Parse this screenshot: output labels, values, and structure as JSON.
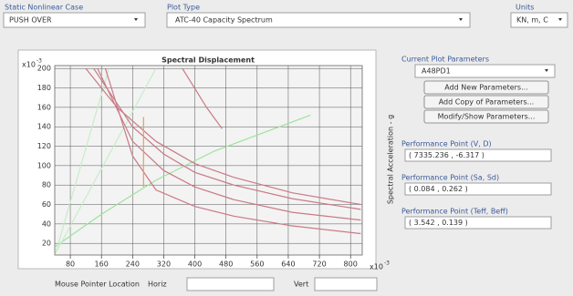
{
  "controls": {
    "case_label": "Static Nonlinear Case",
    "case_value": "PUSH OVER",
    "plot_type_label": "Plot Type",
    "plot_type_value": "ATC-40 Capacity Spectrum",
    "units_label": "Units",
    "units_value": "KN, m, C"
  },
  "plot": {
    "title": "Spectral Displacement",
    "y_label": "Spectral Acceleration - g",
    "y_exponent": "x10",
    "y_exponent_power": "-3",
    "x_exponent": "x10",
    "x_exponent_power": "-3",
    "xlim": [
      40,
      830
    ],
    "ylim": [
      8,
      203
    ],
    "xticks": [
      80,
      160,
      240,
      320,
      400,
      480,
      560,
      640,
      720,
      800
    ],
    "yticks": [
      20,
      40,
      60,
      80,
      100,
      120,
      140,
      160,
      180,
      200
    ],
    "grid": true,
    "series": [
      {
        "color": "#9be39b",
        "x": [
          42,
          160,
          300,
          450,
          697
        ],
        "values": [
          17,
          50,
          85,
          115,
          152
        ]
      },
      {
        "color": "#c8ecc8",
        "x": [
          42,
          179
        ],
        "values": [
          10,
          200
        ]
      },
      {
        "color": "#c8ecc8",
        "x": [
          42,
          300
        ],
        "values": [
          10,
          200
        ]
      },
      {
        "color": "#c97a86",
        "x": [
          120,
          200,
          300,
          400,
          500,
          650,
          826
        ],
        "values": [
          200,
          160,
          125,
          102,
          88,
          72,
          60
        ]
      },
      {
        "color": "#c97a86",
        "x": [
          140,
          240,
          320,
          400,
          500,
          650,
          826
        ],
        "values": [
          200,
          140,
          112,
          93,
          80,
          66,
          55
        ]
      },
      {
        "color": "#c97a86",
        "x": [
          150,
          240,
          320,
          400,
          500,
          650,
          826
        ],
        "values": [
          200,
          125,
          95,
          78,
          65,
          52,
          44
        ]
      },
      {
        "color": "#c97a86",
        "x": [
          170,
          240,
          300,
          400,
          500,
          650,
          826
        ],
        "values": [
          200,
          110,
          75,
          58,
          48,
          38,
          30
        ]
      },
      {
        "color": "#c97a86",
        "x": [
          368,
          430,
          470
        ],
        "values": [
          200,
          160,
          138
        ]
      },
      {
        "color": "#e0a060",
        "x": [
          268,
          268
        ],
        "values": [
          150,
          78
        ]
      }
    ]
  },
  "parameters": {
    "title": "Current Plot Parameters",
    "selected": "A48PD1",
    "buttons": [
      "Add New Parameters...",
      "Add Copy of Parameters...",
      "Modify/Show Parameters..."
    ],
    "performance": [
      {
        "label": "Performance Point (V, D)",
        "value": "( 7335.236 , -6.317 )"
      },
      {
        "label": "Performance Point (Sa, Sd)",
        "value": "( 0.084 , 0.262 )"
      },
      {
        "label": "Performance Point (Teff, Beff)",
        "value": "( 3.542 , 0.139 )"
      }
    ]
  },
  "mouse": {
    "label": "Mouse Pointer Location",
    "horiz": "Horiz",
    "vert": "Vert"
  }
}
